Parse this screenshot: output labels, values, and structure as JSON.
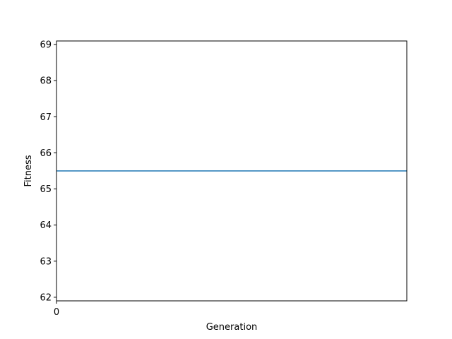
{
  "chart_data": {
    "type": "line",
    "title": "",
    "xlabel": "Generation",
    "ylabel": "Fitness",
    "xlim": [
      0,
      1
    ],
    "ylim": [
      61.9,
      69.1
    ],
    "x_ticks": [
      0
    ],
    "y_ticks": [
      62,
      63,
      64,
      65,
      66,
      67,
      68,
      69
    ],
    "grid": false,
    "series": [
      {
        "x": [
          0,
          1
        ],
        "y": [
          65.5,
          65.5
        ],
        "color": "#1f77b4"
      }
    ]
  }
}
